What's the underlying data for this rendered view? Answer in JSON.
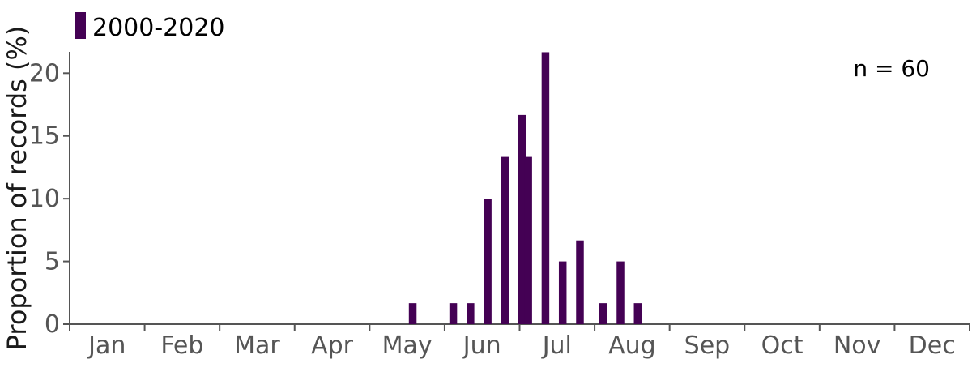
{
  "chart_data": {
    "type": "bar",
    "ylabel": "Proportion of records (%)",
    "xlabel": "",
    "ylim": [
      0,
      21.7
    ],
    "yticks": [
      0,
      5,
      10,
      15,
      20
    ],
    "months": [
      "Jan",
      "Feb",
      "Mar",
      "Apr",
      "May",
      "Jun",
      "Jul",
      "Aug",
      "Sep",
      "Oct",
      "Nov",
      "Dec"
    ],
    "annotation": "n = 60",
    "grid": false,
    "legend_position": "top-left",
    "series": [
      {
        "name": "2000-2020",
        "color": "#440154",
        "x": [
          "May wk3",
          "Jun wk1",
          "Jun wk2",
          "Jun wk3",
          "Jun wk4",
          "Jun wk5",
          "Jul wk1",
          "Jul wk2",
          "Jul wk3",
          "Jul wk4",
          "Aug wk1",
          "Aug wk2",
          "Aug wk3"
        ],
        "values": [
          1.67,
          1.67,
          1.67,
          10.0,
          13.33,
          16.67,
          13.33,
          21.67,
          5.0,
          6.67,
          1.67,
          5.0,
          1.67
        ]
      }
    ]
  }
}
